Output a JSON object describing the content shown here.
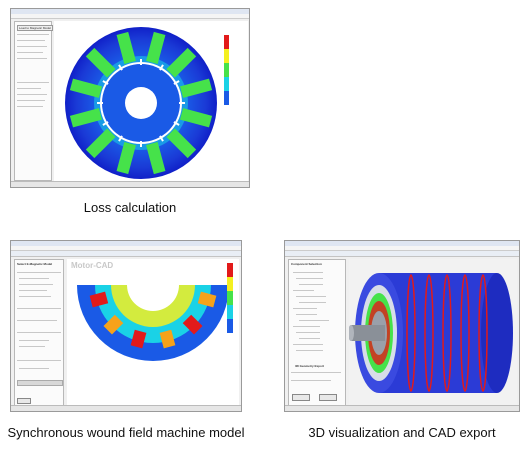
{
  "captions": {
    "top": "Loss calculation",
    "bottom_left": "Synchronous wound field machine model",
    "bottom_right": "3D visualization and CAD export"
  },
  "screens": {
    "loss": {
      "button_label": "Load to Magnetic Model"
    },
    "sync": {
      "panel_title": "Select E-Magnetic Model",
      "watermark": "Motor-CAD"
    },
    "viz3d": {
      "panel_title": "Component Selection",
      "sub_title": "3D Geometry Export"
    }
  },
  "colors": {
    "hot": "#e21a1a",
    "warm": "#f4f020",
    "mid": "#46e24a",
    "cool": "#1ad2e6",
    "cold": "#1a5ae6",
    "deep": "#1020c8"
  }
}
